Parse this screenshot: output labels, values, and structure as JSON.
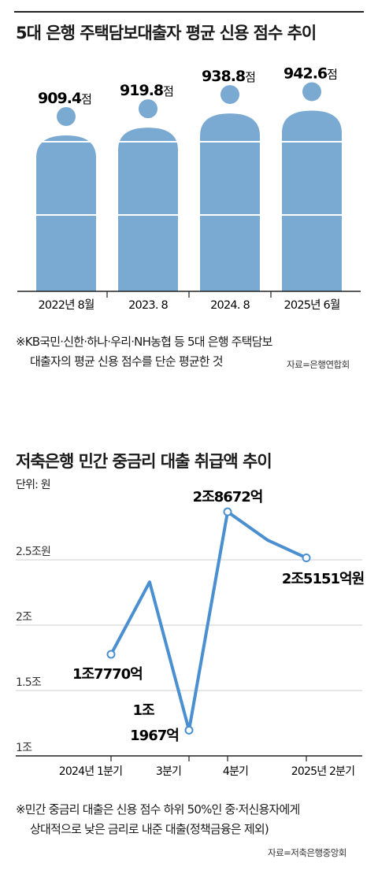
{
  "colors": {
    "figure": "#7aaad2",
    "line": "#4a8fd0",
    "grid": "#cccccc",
    "text": "#1a1a1a"
  },
  "chart1": {
    "title": "5대 은행 주택담보대출자 평균 신용 점수 추이",
    "note_line1": "※KB국민·신한·하나·우리·NH농협 등 5대 은행 주택담보",
    "note_line2": "대출자의 평균 신용 점수를 단순 평균한 것",
    "source": "자료=은행연합회"
  },
  "chart2": {
    "title": "저축은행 민간 중금리 대출 취급액 추이",
    "unit": "단위: 원",
    "note_line1": "※민간 중금리 대출은 신용 점수 하위 50%인 중·저신용자에게",
    "note_line2": "상대적으로 낮은 금리로 내준 대출(정책금융은 제외)",
    "source": "자료=저축은행중앙회"
  },
  "chart_data": [
    {
      "type": "bar",
      "title": "5대 은행 주택담보대출자 평균 신용 점수 추이",
      "categories": [
        "2022년 8월",
        "2023. 8",
        "2024. 8",
        "2025년 6월"
      ],
      "values": [
        909.4,
        919.8,
        938.8,
        942.6
      ],
      "value_labels": [
        "909.4",
        "919.8",
        "938.8",
        "942.6"
      ],
      "unit_suffix": "점",
      "grid": false
    },
    {
      "type": "line",
      "title": "저축은행 민간 중금리 대출 취급액 추이",
      "ylabel": "단위: 원",
      "ylim": [
        1.0,
        2.9
      ],
      "yticks": [
        1,
        1.5,
        2,
        2.5
      ],
      "ytick_labels": [
        "1조",
        "1.5조",
        "2조",
        "2.5조원"
      ],
      "x": [
        0,
        1,
        2,
        3,
        4,
        5
      ],
      "xtick_labels": [
        {
          "x": 0,
          "label": "2024년 1분기"
        },
        {
          "x": 2,
          "label": "3분기"
        },
        {
          "x": 3,
          "label": "4분기"
        },
        {
          "x": 5,
          "label": "2025년 2분기"
        }
      ],
      "values": [
        1.777,
        2.33,
        1.1967,
        2.8672,
        2.65,
        2.5151
      ],
      "labeled_points": [
        {
          "x": 0,
          "label": "1조7770억"
        },
        {
          "x": 2,
          "label_line1": "1조",
          "label_line2": "1967억"
        },
        {
          "x": 3,
          "label": "2조8672억"
        },
        {
          "x": 5,
          "label": "2조5151억원"
        }
      ],
      "grid": true
    }
  ]
}
